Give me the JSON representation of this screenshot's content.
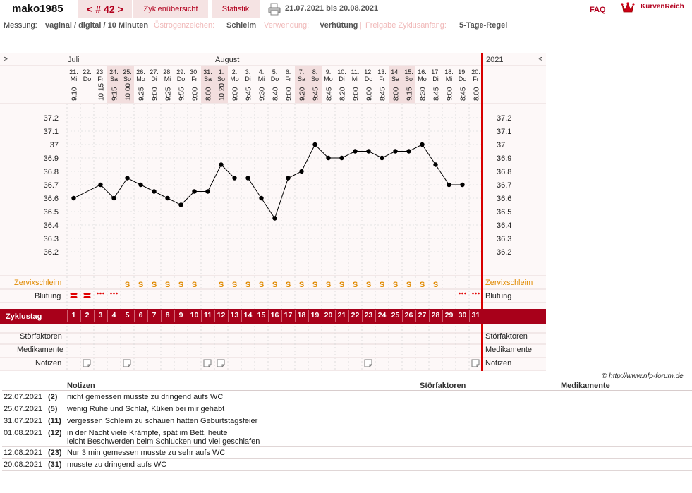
{
  "header": {
    "username": "mako1985",
    "cycle_label": "< # 42 >",
    "tab_overview": "Zyklenübersicht",
    "tab_stats": "Statistik",
    "date_range": "21.07.2021 bis 20.08.2021",
    "faq": "FAQ",
    "brand": "KurvenReich"
  },
  "settings": {
    "measurement_label": "Messung:",
    "measurement_value": "vaginal / digital / 10 Minuten",
    "estrogen_label": "Östrogenzeichen:",
    "estrogen_value": "Schleim",
    "usage_label": "Verwendung:",
    "usage_value": "Verhütung",
    "release_label": "Freigabe Zyklusanfang:",
    "release_value": "5-Tage-Regel"
  },
  "chart_nav": {
    "prev": ">",
    "next": "<",
    "year": "2021",
    "month_july": "Juli",
    "month_august": "August"
  },
  "chart_data": {
    "type": "line",
    "title": "",
    "xlabel": "",
    "ylabel": "",
    "ylim": [
      36.2,
      37.2
    ],
    "yticks": [
      "37.2",
      "37.1",
      "37",
      "36.9",
      "36.8",
      "36.7",
      "36.6",
      "36.5",
      "36.4",
      "36.3",
      "36.2"
    ],
    "days": [
      {
        "date": "21.",
        "wd": "Mi",
        "time": "9:10",
        "temp": 36.6,
        "we": false
      },
      {
        "date": "22.",
        "wd": "Do",
        "time": "",
        "temp": null,
        "we": false
      },
      {
        "date": "23.",
        "wd": "Fr",
        "time": "10:15",
        "temp": 36.7,
        "we": false
      },
      {
        "date": "24.",
        "wd": "Sa",
        "time": "9:15",
        "temp": 36.6,
        "we": true
      },
      {
        "date": "25.",
        "wd": "So",
        "time": "10:00",
        "temp": 36.75,
        "we": true
      },
      {
        "date": "26.",
        "wd": "Mo",
        "time": "9:25",
        "temp": 36.7,
        "we": false
      },
      {
        "date": "27.",
        "wd": "Di",
        "time": "9:00",
        "temp": 36.65,
        "we": false
      },
      {
        "date": "28.",
        "wd": "Mi",
        "time": "9:25",
        "temp": 36.6,
        "we": false
      },
      {
        "date": "29.",
        "wd": "Do",
        "time": "9:55",
        "temp": 36.55,
        "we": false
      },
      {
        "date": "30.",
        "wd": "Fr",
        "time": "9:00",
        "temp": 36.65,
        "we": false
      },
      {
        "date": "31.",
        "wd": "Sa",
        "time": "8:00",
        "temp": 36.65,
        "we": true
      },
      {
        "date": "1.",
        "wd": "So",
        "time": "10:20",
        "temp": 36.85,
        "we": true
      },
      {
        "date": "2.",
        "wd": "Mo",
        "time": "9:00",
        "temp": 36.75,
        "we": false
      },
      {
        "date": "3.",
        "wd": "Di",
        "time": "9:45",
        "temp": 36.75,
        "we": false
      },
      {
        "date": "4.",
        "wd": "Mi",
        "time": "9:30",
        "temp": 36.6,
        "we": false
      },
      {
        "date": "5.",
        "wd": "Do",
        "time": "8:40",
        "temp": 36.45,
        "we": false
      },
      {
        "date": "6.",
        "wd": "Fr",
        "time": "9:00",
        "temp": 36.75,
        "we": false
      },
      {
        "date": "7.",
        "wd": "Sa",
        "time": "9:20",
        "temp": 36.8,
        "we": true
      },
      {
        "date": "8.",
        "wd": "So",
        "time": "9:45",
        "temp": 37.0,
        "we": true
      },
      {
        "date": "9.",
        "wd": "Mo",
        "time": "8:45",
        "temp": 36.9,
        "we": false
      },
      {
        "date": "10.",
        "wd": "Di",
        "time": "8:20",
        "temp": 36.9,
        "we": false
      },
      {
        "date": "11.",
        "wd": "Mi",
        "time": "9:00",
        "temp": 36.95,
        "we": false
      },
      {
        "date": "12.",
        "wd": "Do",
        "time": "9:00",
        "temp": 36.95,
        "we": false
      },
      {
        "date": "13.",
        "wd": "Fr",
        "time": "8:45",
        "temp": 36.9,
        "we": false
      },
      {
        "date": "14.",
        "wd": "Sa",
        "time": "8:00",
        "temp": 36.95,
        "we": true
      },
      {
        "date": "15.",
        "wd": "So",
        "time": "9:15",
        "temp": 36.95,
        "we": true
      },
      {
        "date": "16.",
        "wd": "Mo",
        "time": "8:30",
        "temp": 37.0,
        "we": false
      },
      {
        "date": "17.",
        "wd": "Di",
        "time": "8:45",
        "temp": 36.85,
        "we": false
      },
      {
        "date": "18.",
        "wd": "Mi",
        "time": "9:00",
        "temp": 36.7,
        "we": false
      },
      {
        "date": "19.",
        "wd": "Do",
        "time": "8:45",
        "temp": 36.7,
        "we": false
      },
      {
        "date": "20.",
        "wd": "Fr",
        "time": "8:00",
        "temp": null,
        "we": false
      }
    ]
  },
  "rows": {
    "mucus_label": "Zervixschleim",
    "bleeding_label": "Blutung",
    "cycle_day_label": "Zyklustag",
    "disturb_label": "Störfaktoren",
    "meds_label": "Medikamente",
    "notes_label": "Notizen",
    "mucus_symbol": "S",
    "mucus_days": [
      5,
      6,
      7,
      8,
      9,
      10,
      12,
      13,
      14,
      15,
      16,
      17,
      18,
      19,
      20,
      21,
      22,
      23,
      24,
      25,
      26,
      27,
      28
    ],
    "bleeding": {
      "1": "heavy",
      "2": "heavy",
      "3": "spot",
      "4": "spot",
      "30": "spot",
      "31": "spot"
    },
    "note_days": [
      2,
      5,
      11,
      12,
      23,
      31
    ],
    "cycle_days": [
      "1",
      "2",
      "3",
      "4",
      "5",
      "6",
      "7",
      "8",
      "9",
      "10",
      "11",
      "12",
      "13",
      "14",
      "15",
      "16",
      "17",
      "18",
      "19",
      "20",
      "21",
      "22",
      "23",
      "24",
      "25",
      "26",
      "27",
      "28",
      "29",
      "30",
      "31"
    ]
  },
  "copyright": "© http://www.nfp-forum.de",
  "notes_table": {
    "headers": {
      "notes": "Notizen",
      "disturb": "Störfaktoren",
      "meds": "Medikamente"
    },
    "rows": [
      {
        "date": "22.07.2021",
        "day": "(2)",
        "text": "nicht gemessen musste zu dringend aufs WC"
      },
      {
        "date": "25.07.2021",
        "day": "(5)",
        "text": "wenig Ruhe und Schlaf, Küken bei mir gehabt"
      },
      {
        "date": "31.07.2021",
        "day": "(11)",
        "text": "vergessen Schleim zu schauen hatten Geburtstagsfeier"
      },
      {
        "date": "01.08.2021",
        "day": "(12)",
        "text": "in der Nacht viele Krämpfe, spät im Bett, heute",
        "text2": "leicht Beschwerden beim Schlucken und viel geschlafen"
      },
      {
        "date": "12.08.2021",
        "day": "(23)",
        "text": "Nur 3 min gemessen musste zu sehr aufs WC"
      },
      {
        "date": "20.08.2021",
        "day": "(31)",
        "text": "musste zu dringend aufs WC"
      }
    ]
  },
  "colors": {
    "accent": "#a8001a",
    "tab_bg": "#f5e3e3",
    "mucus": "#e08a00",
    "bleed": "#e00000",
    "redline": "#d80000"
  }
}
